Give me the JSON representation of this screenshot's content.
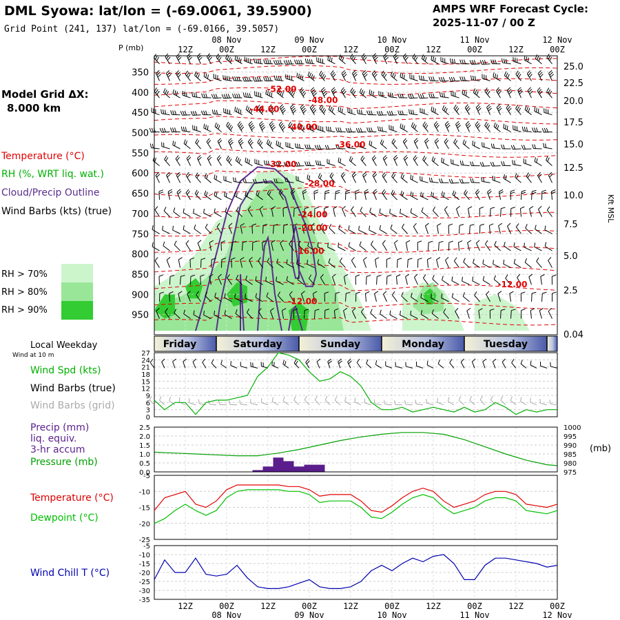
{
  "header": {
    "title": "DML Syowa:  lat/lon = (-69.0061, 39.5900)",
    "grid_point": "Grid Point (241, 137) lat/lon = (-69.0166, 39.5057)",
    "forecast_title": "AMPS WRF Forecast Cycle:",
    "forecast_cycle": "2025-11-07 / 00  Z"
  },
  "left_legend": {
    "model_grid_label": "Model Grid ΔX:",
    "model_grid_value": "8.000 km",
    "temperature": "Temperature (°C)",
    "rh": "RH (%, WRT liq. wat.)",
    "cloud": "Cloud/Precip Outline",
    "wind_barbs": "Wind Barbs (kts) (true)",
    "rh70": "RH > 70%",
    "rh80": "RH > 80%",
    "rh90": "RH > 90%"
  },
  "colors": {
    "temperature": "#e00000",
    "rh": "#00b000",
    "cloud": "#5a2d8c",
    "rh70": "#ccf5cc",
    "rh80": "#99e699",
    "rh90": "#33cc33",
    "wind_chill": "#0000b0",
    "dewpoint": "#00c000",
    "precip": "#5a1e8c",
    "pressure": "#00a000",
    "grid_barbs": "#aaaaaa"
  },
  "time_axis": {
    "top_dates": [
      "08 Nov",
      "09 Nov",
      "10 Nov",
      "11 Nov",
      "12 Nov"
    ],
    "bottom_dates": [
      "08 Nov",
      "09 Nov",
      "10 Nov",
      "11 Nov",
      "12 Nov"
    ],
    "hour_labels": [
      "12Z",
      "00Z",
      "12Z",
      "00Z",
      "12Z",
      "00Z",
      "12Z",
      "00Z",
      "12Z",
      "00Z"
    ],
    "hours": [
      12,
      24,
      36,
      48,
      60,
      72,
      84,
      96,
      108,
      120
    ],
    "start_hour": 3,
    "end_hour": 120
  },
  "weekday": {
    "label": "Local Weekday",
    "days": [
      "Friday",
      "Saturday",
      "Sunday",
      "Monday",
      "Tuesday"
    ],
    "boundaries": [
      21,
      45,
      69,
      93,
      117
    ]
  },
  "chart_data": [
    {
      "type": "heatmap",
      "ylabel_left": "P (mb)",
      "ylabel_right": "Kft MSL",
      "pressure_ticks": [
        350,
        400,
        450,
        500,
        550,
        600,
        650,
        700,
        750,
        800,
        850,
        900,
        950
      ],
      "kft_ticks": [
        "25.0",
        "22.5",
        "20.0",
        "17.5",
        "15.0",
        "12.5",
        "10.0",
        "7.5",
        "5.0",
        "2.5",
        "0.04"
      ],
      "ylim": [
        1000,
        310
      ],
      "temperature_contour_labels": [
        {
          "label": "-52.00",
          "hour": 40,
          "p": 393
        },
        {
          "label": "-48.00",
          "hour": 52,
          "p": 420
        },
        {
          "label": "-44.00",
          "hour": 35,
          "p": 442
        },
        {
          "label": "-40.00",
          "hour": 46,
          "p": 486
        },
        {
          "label": "-36.00",
          "hour": 60,
          "p": 530
        },
        {
          "label": "-32.00",
          "hour": 40,
          "p": 578
        },
        {
          "label": "-28.00",
          "hour": 51,
          "p": 626
        },
        {
          "label": "-24.00",
          "hour": 49,
          "p": 703
        },
        {
          "label": "-20.00",
          "hour": 49,
          "p": 736
        },
        {
          "label": "-16.00",
          "hour": 48,
          "p": 793
        },
        {
          "label": "-12.00",
          "hour": 46,
          "p": 917
        },
        {
          "label": "-12.00",
          "hour": 107,
          "p": 876
        }
      ]
    },
    {
      "type": "line",
      "title": "",
      "series_labels": [
        "Wind Spd (kts)",
        "Wind Barbs (true)",
        "Wind Barbs (grid)"
      ],
      "wind_label": "Wind at 10 m",
      "yticks": [
        0,
        3,
        6,
        9,
        12,
        15,
        18,
        21,
        24,
        27
      ],
      "ylim": [
        0,
        27
      ],
      "x": [
        3,
        6,
        9,
        12,
        15,
        18,
        21,
        24,
        27,
        30,
        33,
        36,
        39,
        42,
        45,
        48,
        51,
        54,
        57,
        60,
        63,
        66,
        69,
        72,
        75,
        78,
        81,
        84,
        87,
        90,
        93,
        96,
        99,
        102,
        105,
        108,
        111,
        114,
        117,
        120
      ],
      "series": [
        {
          "name": "Wind Spd (kts)",
          "values": [
            7,
            3,
            6,
            6,
            1,
            6,
            7,
            7,
            8,
            9,
            17,
            21,
            27,
            26,
            24,
            19,
            15,
            16,
            19,
            17,
            13,
            6,
            3,
            3,
            4,
            2,
            3,
            4,
            3,
            2,
            4,
            2,
            3,
            6,
            4,
            1,
            3,
            2,
            3,
            3
          ]
        }
      ]
    },
    {
      "type": "bar",
      "series_labels": [
        "Precip (mm)",
        "liq. equiv.",
        "3-hr accum",
        "Pressure (mb)"
      ],
      "right_label": "(mb)",
      "yticks_left": [
        "0.0",
        "0.5",
        "1.0",
        "1.5",
        "2.0",
        "2.5"
      ],
      "yticks_right": [
        "975",
        "980",
        "985",
        "990",
        "995",
        "1000"
      ],
      "ylim": [
        0,
        2.5
      ],
      "ylim_right": [
        975,
        1000
      ],
      "precip_x": [
        33,
        36,
        39,
        42,
        45,
        48,
        51
      ],
      "precip_values": [
        0.1,
        0.3,
        0.8,
        0.6,
        0.3,
        0.4,
        0.4
      ],
      "pressure_x": [
        3,
        9,
        15,
        21,
        27,
        33,
        39,
        45,
        51,
        57,
        63,
        69,
        75,
        81,
        87,
        93,
        99,
        105,
        111,
        117,
        120
      ],
      "pressure_values": [
        986,
        985.5,
        985,
        984.5,
        984,
        984,
        985.5,
        987.5,
        990,
        992.5,
        994.5,
        996,
        997,
        997,
        996,
        993,
        989,
        985,
        981.5,
        979,
        978.5
      ]
    },
    {
      "type": "line",
      "series_labels": [
        "Temperature (°C)",
        "Dewpoint (°C)"
      ],
      "yticks": [
        -5,
        -10,
        -15,
        -20,
        -25
      ],
      "ylim": [
        -25,
        -5
      ],
      "x": [
        3,
        6,
        9,
        12,
        15,
        18,
        21,
        24,
        27,
        30,
        33,
        36,
        39,
        42,
        45,
        48,
        51,
        54,
        57,
        60,
        63,
        66,
        69,
        72,
        75,
        78,
        81,
        84,
        87,
        90,
        93,
        96,
        99,
        102,
        105,
        108,
        111,
        114,
        117,
        120
      ],
      "series": [
        {
          "name": "Temperature (°C)",
          "values": [
            -16,
            -12,
            -11,
            -10,
            -14,
            -15,
            -13,
            -9.5,
            -8,
            -8,
            -8,
            -8,
            -8,
            -8.5,
            -8.5,
            -9.5,
            -11.5,
            -11,
            -11,
            -11,
            -13,
            -16,
            -16.5,
            -14.5,
            -12,
            -10,
            -9,
            -10,
            -13,
            -15,
            -14,
            -13,
            -11,
            -10,
            -10,
            -11,
            -14,
            -14.5,
            -15,
            -14
          ]
        },
        {
          "name": "Dewpoint (°C)",
          "values": [
            -20,
            -18.5,
            -16,
            -14,
            -16,
            -17.5,
            -16,
            -12,
            -10,
            -9.5,
            -9.5,
            -9.5,
            -9.5,
            -10,
            -10,
            -11,
            -13.5,
            -13,
            -13,
            -13,
            -15,
            -18,
            -18.5,
            -16.5,
            -14,
            -12,
            -11,
            -12,
            -15,
            -17,
            -16,
            -15,
            -13,
            -12,
            -12,
            -13,
            -16,
            -16.5,
            -17,
            -16
          ]
        }
      ]
    },
    {
      "type": "line",
      "series_labels": [
        "Wind Chill T (°C)"
      ],
      "yticks": [
        -5,
        -10,
        -15,
        -20,
        -25,
        -30,
        -35
      ],
      "ylim": [
        -35,
        -5
      ],
      "x": [
        3,
        6,
        9,
        12,
        15,
        18,
        21,
        24,
        27,
        30,
        33,
        36,
        39,
        42,
        45,
        48,
        51,
        54,
        57,
        60,
        63,
        66,
        69,
        72,
        75,
        78,
        81,
        84,
        87,
        90,
        93,
        96,
        99,
        102,
        105,
        108,
        111,
        114,
        117,
        120
      ],
      "series": [
        {
          "name": "Wind Chill T (°C)",
          "values": [
            -24,
            -13,
            -20,
            -20,
            -12,
            -21,
            -22,
            -21,
            -16,
            -23,
            -28,
            -29,
            -29,
            -28,
            -26,
            -24,
            -28,
            -29,
            -29,
            -28,
            -25,
            -19,
            -16,
            -19,
            -15,
            -12,
            -14,
            -11,
            -10,
            -15,
            -24,
            -24,
            -16,
            -12,
            -12,
            -13,
            -14,
            -15,
            -17,
            -16
          ]
        }
      ]
    }
  ]
}
